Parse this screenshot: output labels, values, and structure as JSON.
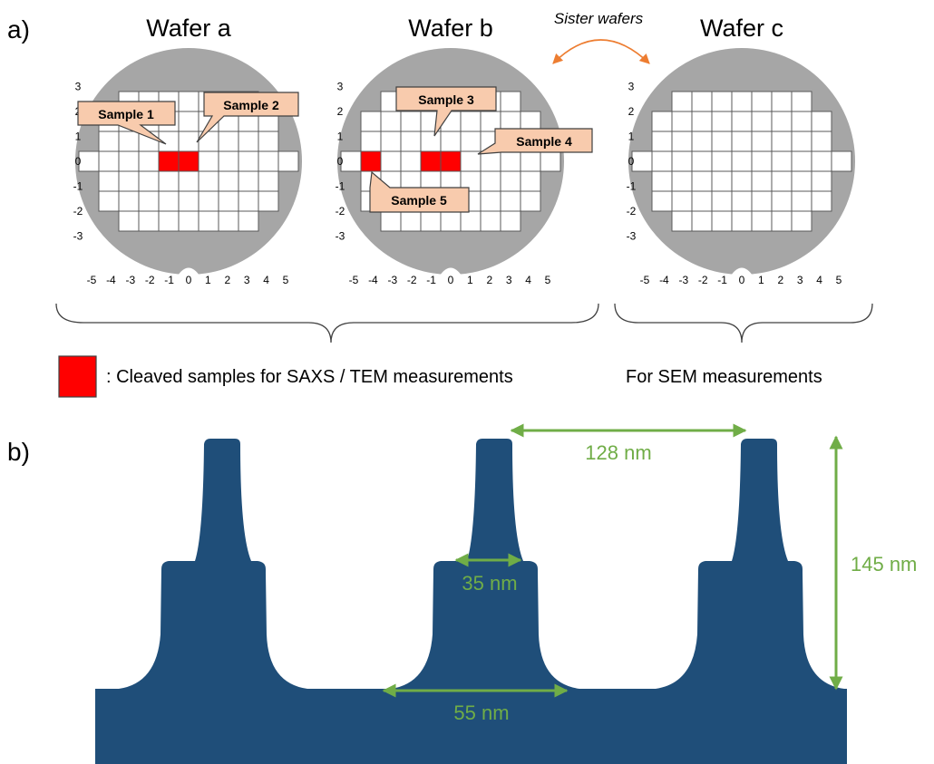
{
  "panel_a": {
    "label": "a)",
    "wafers": [
      {
        "title": "Wafer a"
      },
      {
        "title": "Wafer b"
      },
      {
        "title": "Wafer c"
      }
    ],
    "sister_label": "Sister wafers",
    "x_ticks": [
      "-5",
      "-4",
      "-3",
      "-2",
      "-1",
      "0",
      "1",
      "2",
      "3",
      "4",
      "5"
    ],
    "y_ticks": [
      "3",
      "2",
      "1",
      "0",
      "-1",
      "-2",
      "-3"
    ],
    "samples": [
      {
        "label": "Sample 1",
        "wafer": 0,
        "die": [
          -1,
          0
        ]
      },
      {
        "label": "Sample 2",
        "wafer": 0,
        "die": [
          0,
          0
        ]
      },
      {
        "label": "Sample 3",
        "wafer": 1,
        "die": [
          -1,
          0
        ]
      },
      {
        "label": "Sample 4",
        "wafer": 1,
        "die": [
          0,
          0
        ]
      },
      {
        "label": "Sample 5",
        "wafer": 1,
        "die": [
          -4,
          0
        ]
      }
    ],
    "legend_text": ": Cleaved samples for SAXS / TEM measurements",
    "sem_text": "For SEM measurements",
    "colors": {
      "wafer": "#a6a6a6",
      "die_fill": "#ffffff",
      "die_line": "#595959",
      "sample": "#ff0000",
      "callout_fill": "#f8cbad",
      "callout_line": "#404040",
      "brace": "#404040",
      "arrow": "#ed7d31"
    }
  },
  "panel_b": {
    "label": "b)",
    "dims": {
      "pitch": "128 nm",
      "height": "145 nm",
      "top_width": "35 nm",
      "bottom_width": "55 nm"
    },
    "colors": {
      "structure": "#1f4e79",
      "dimension": "#70ad47"
    }
  }
}
